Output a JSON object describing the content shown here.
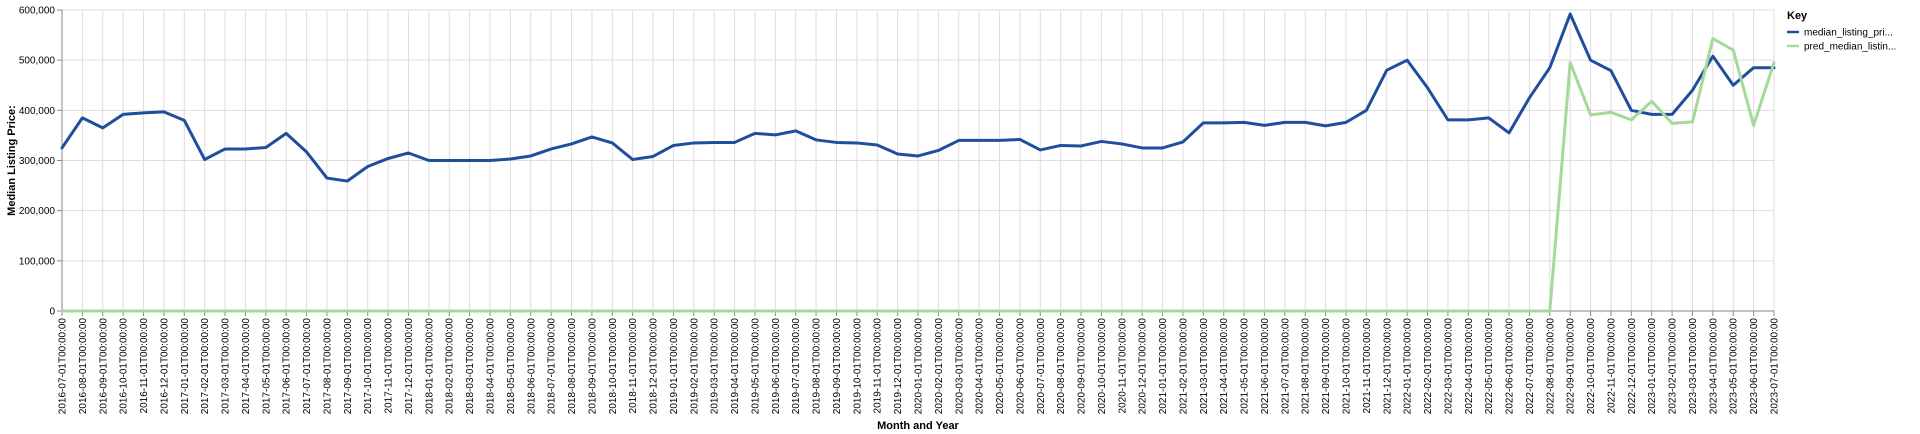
{
  "chart_data": {
    "type": "line",
    "xlabel": "Month and Year",
    "ylabel": "Median Listing Price:",
    "ylim": [
      0,
      600000
    ],
    "yticks": [
      0,
      100000,
      200000,
      300000,
      400000,
      500000,
      600000
    ],
    "ytick_labels": [
      "0",
      "100,000",
      "200,000",
      "300,000",
      "400,000",
      "500,000",
      "600,000"
    ],
    "grid": true,
    "legend_placement": "top-right",
    "legend_title": "Key",
    "x": [
      "2016-07-01T00:00:00",
      "2016-08-01T00:00:00",
      "2016-09-01T00:00:00",
      "2016-10-01T00:00:00",
      "2016-11-01T00:00:00",
      "2016-12-01T00:00:00",
      "2017-01-01T00:00:00",
      "2017-02-01T00:00:00",
      "2017-03-01T00:00:00",
      "2017-04-01T00:00:00",
      "2017-05-01T00:00:00",
      "2017-06-01T00:00:00",
      "2017-07-01T00:00:00",
      "2017-08-01T00:00:00",
      "2017-09-01T00:00:00",
      "2017-10-01T00:00:00",
      "2017-11-01T00:00:00",
      "2017-12-01T00:00:00",
      "2018-01-01T00:00:00",
      "2018-02-01T00:00:00",
      "2018-03-01T00:00:00",
      "2018-04-01T00:00:00",
      "2018-05-01T00:00:00",
      "2018-06-01T00:00:00",
      "2018-07-01T00:00:00",
      "2018-08-01T00:00:00",
      "2018-09-01T00:00:00",
      "2018-10-01T00:00:00",
      "2018-11-01T00:00:00",
      "2018-12-01T00:00:00",
      "2019-01-01T00:00:00",
      "2019-02-01T00:00:00",
      "2019-03-01T00:00:00",
      "2019-04-01T00:00:00",
      "2019-05-01T00:00:00",
      "2019-06-01T00:00:00",
      "2019-07-01T00:00:00",
      "2019-08-01T00:00:00",
      "2019-09-01T00:00:00",
      "2019-10-01T00:00:00",
      "2019-11-01T00:00:00",
      "2019-12-01T00:00:00",
      "2020-01-01T00:00:00",
      "2020-02-01T00:00:00",
      "2020-03-01T00:00:00",
      "2020-04-01T00:00:00",
      "2020-05-01T00:00:00",
      "2020-06-01T00:00:00",
      "2020-07-01T00:00:00",
      "2020-08-01T00:00:00",
      "2020-09-01T00:00:00",
      "2020-10-01T00:00:00",
      "2020-11-01T00:00:00",
      "2020-12-01T00:00:00",
      "2021-01-01T00:00:00",
      "2021-02-01T00:00:00",
      "2021-03-01T00:00:00",
      "2021-04-01T00:00:00",
      "2021-05-01T00:00:00",
      "2021-06-01T00:00:00",
      "2021-07-01T00:00:00",
      "2021-08-01T00:00:00",
      "2021-09-01T00:00:00",
      "2021-10-01T00:00:00",
      "2021-11-01T00:00:00",
      "2021-12-01T00:00:00",
      "2022-01-01T00:00:00",
      "2022-02-01T00:00:00",
      "2022-03-01T00:00:00",
      "2022-04-01T00:00:00",
      "2022-05-01T00:00:00",
      "2022-06-01T00:00:00",
      "2022-07-01T00:00:00",
      "2022-08-01T00:00:00",
      "2022-09-01T00:00:00",
      "2022-10-01T00:00:00",
      "2022-11-01T00:00:00",
      "2022-12-01T00:00:00",
      "2023-01-01T00:00:00",
      "2023-02-01T00:00:00",
      "2023-03-01T00:00:00",
      "2023-04-01T00:00:00",
      "2023-05-01T00:00:00",
      "2023-06-01T00:00:00",
      "2023-07-01T00:00:00"
    ],
    "series": [
      {
        "name": "median_listing_pri...",
        "color": "#1f4e9c",
        "values": [
          325000,
          385000,
          365000,
          392000,
          395000,
          397000,
          380000,
          302000,
          323000,
          323000,
          326000,
          354000,
          317000,
          265000,
          259000,
          288000,
          304000,
          315000,
          300000,
          300000,
          300000,
          300000,
          303000,
          309000,
          323000,
          333000,
          347000,
          335000,
          302000,
          308000,
          330000,
          335000,
          336000,
          336000,
          354000,
          351000,
          359000,
          341000,
          336000,
          335000,
          331000,
          313000,
          309000,
          320000,
          340000,
          340000,
          340000,
          342000,
          321000,
          330000,
          329000,
          338000,
          333000,
          325000,
          325000,
          337000,
          375000,
          375000,
          376000,
          370000,
          376000,
          376000,
          369000,
          376000,
          400000,
          480000,
          500000,
          445000,
          381000,
          381000,
          385000,
          355000,
          425000,
          485000,
          592000,
          500000,
          479000,
          400000,
          392000,
          392000,
          440000,
          508000,
          450000,
          485000,
          485000
        ]
      },
      {
        "name": "pred_median_listin...",
        "color": "#a5d99a",
        "values": [
          0,
          0,
          0,
          0,
          0,
          0,
          0,
          0,
          0,
          0,
          0,
          0,
          0,
          0,
          0,
          0,
          0,
          0,
          0,
          0,
          0,
          0,
          0,
          0,
          0,
          0,
          0,
          0,
          0,
          0,
          0,
          0,
          0,
          0,
          0,
          0,
          0,
          0,
          0,
          0,
          0,
          0,
          0,
          0,
          0,
          0,
          0,
          0,
          0,
          0,
          0,
          0,
          0,
          0,
          0,
          0,
          0,
          0,
          0,
          0,
          0,
          0,
          0,
          0,
          0,
          0,
          0,
          0,
          0,
          0,
          0,
          0,
          0,
          0,
          495000,
          391000,
          396000,
          381000,
          418000,
          374000,
          377000,
          543000,
          520000,
          370000,
          495000
        ]
      }
    ]
  }
}
